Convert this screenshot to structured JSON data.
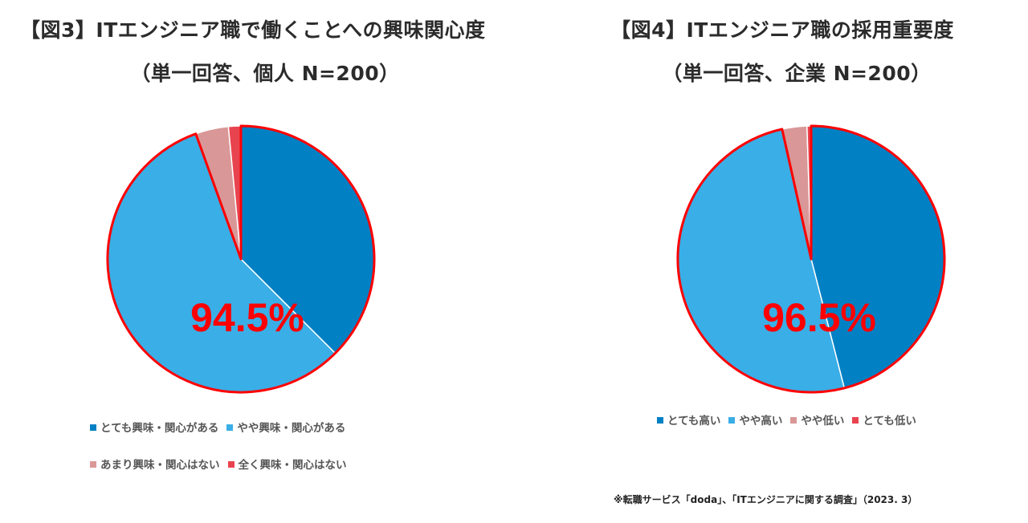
{
  "chart_data": [
    {
      "type": "pie",
      "title": "【図3】ITエンジニア職で働くことへの興味関心度",
      "subtitle": "（単一回答、個人 N=200）",
      "categories": [
        "とても興味・関心がある",
        "やや興味・関心がある",
        "あまり興味・関心はない",
        "全く興味・関心はない"
      ],
      "values": [
        37.5,
        57.0,
        4.0,
        1.5
      ],
      "colors": [
        "#0280c4",
        "#3aaee6",
        "#d99897",
        "#e8444f"
      ],
      "annotation": "94.5%",
      "highlight_color": "#ff0000",
      "legend_position": "bottom"
    },
    {
      "type": "pie",
      "title": "【図4】ITエンジニア職の採用重要度",
      "subtitle": "（単一回答、企業 N=200）",
      "categories": [
        "とても高い",
        "やや高い",
        "やや低い",
        "とても低い"
      ],
      "values": [
        46.0,
        50.5,
        3.0,
        0.5
      ],
      "colors": [
        "#0280c4",
        "#3aaee6",
        "#d99897",
        "#e8444f"
      ],
      "annotation": "96.5%",
      "highlight_color": "#ff0000",
      "legend_position": "bottom"
    }
  ],
  "source_note": "※転職サービス「doda」、「ITエンジニアに関する調査」（2023. 3）"
}
